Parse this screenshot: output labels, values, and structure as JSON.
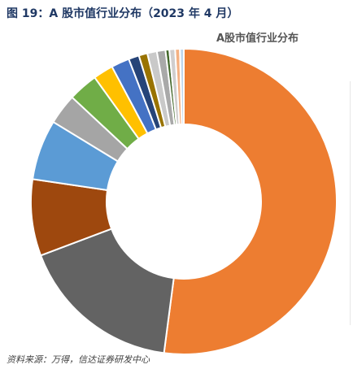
{
  "caption": "图 19：A 股市值行业分布（2023 年 4 月）",
  "source": "资料来源：万得，信达证券研发中心",
  "chart_data": {
    "type": "pie",
    "variant": "donut",
    "title": "A股市值行业分布",
    "legend": "none",
    "values": [
      51.5,
      17.0,
      8.0,
      6.3,
      3.2,
      3.1,
      2.1,
      1.9,
      1.1,
      0.9,
      1.0,
      0.9,
      0.4,
      0.6,
      0.5,
      0.4
    ],
    "colors": [
      "#ED7D31",
      "#636363",
      "#9E480E",
      "#5B9BD5",
      "#A5A5A5",
      "#70AD47",
      "#FFC000",
      "#4472C4",
      "#264478",
      "#997300",
      "#C9C9C9",
      "#A9A9A9",
      "#43682B",
      "#D0CECE",
      "#F4B183",
      "#BDD7EE"
    ]
  }
}
